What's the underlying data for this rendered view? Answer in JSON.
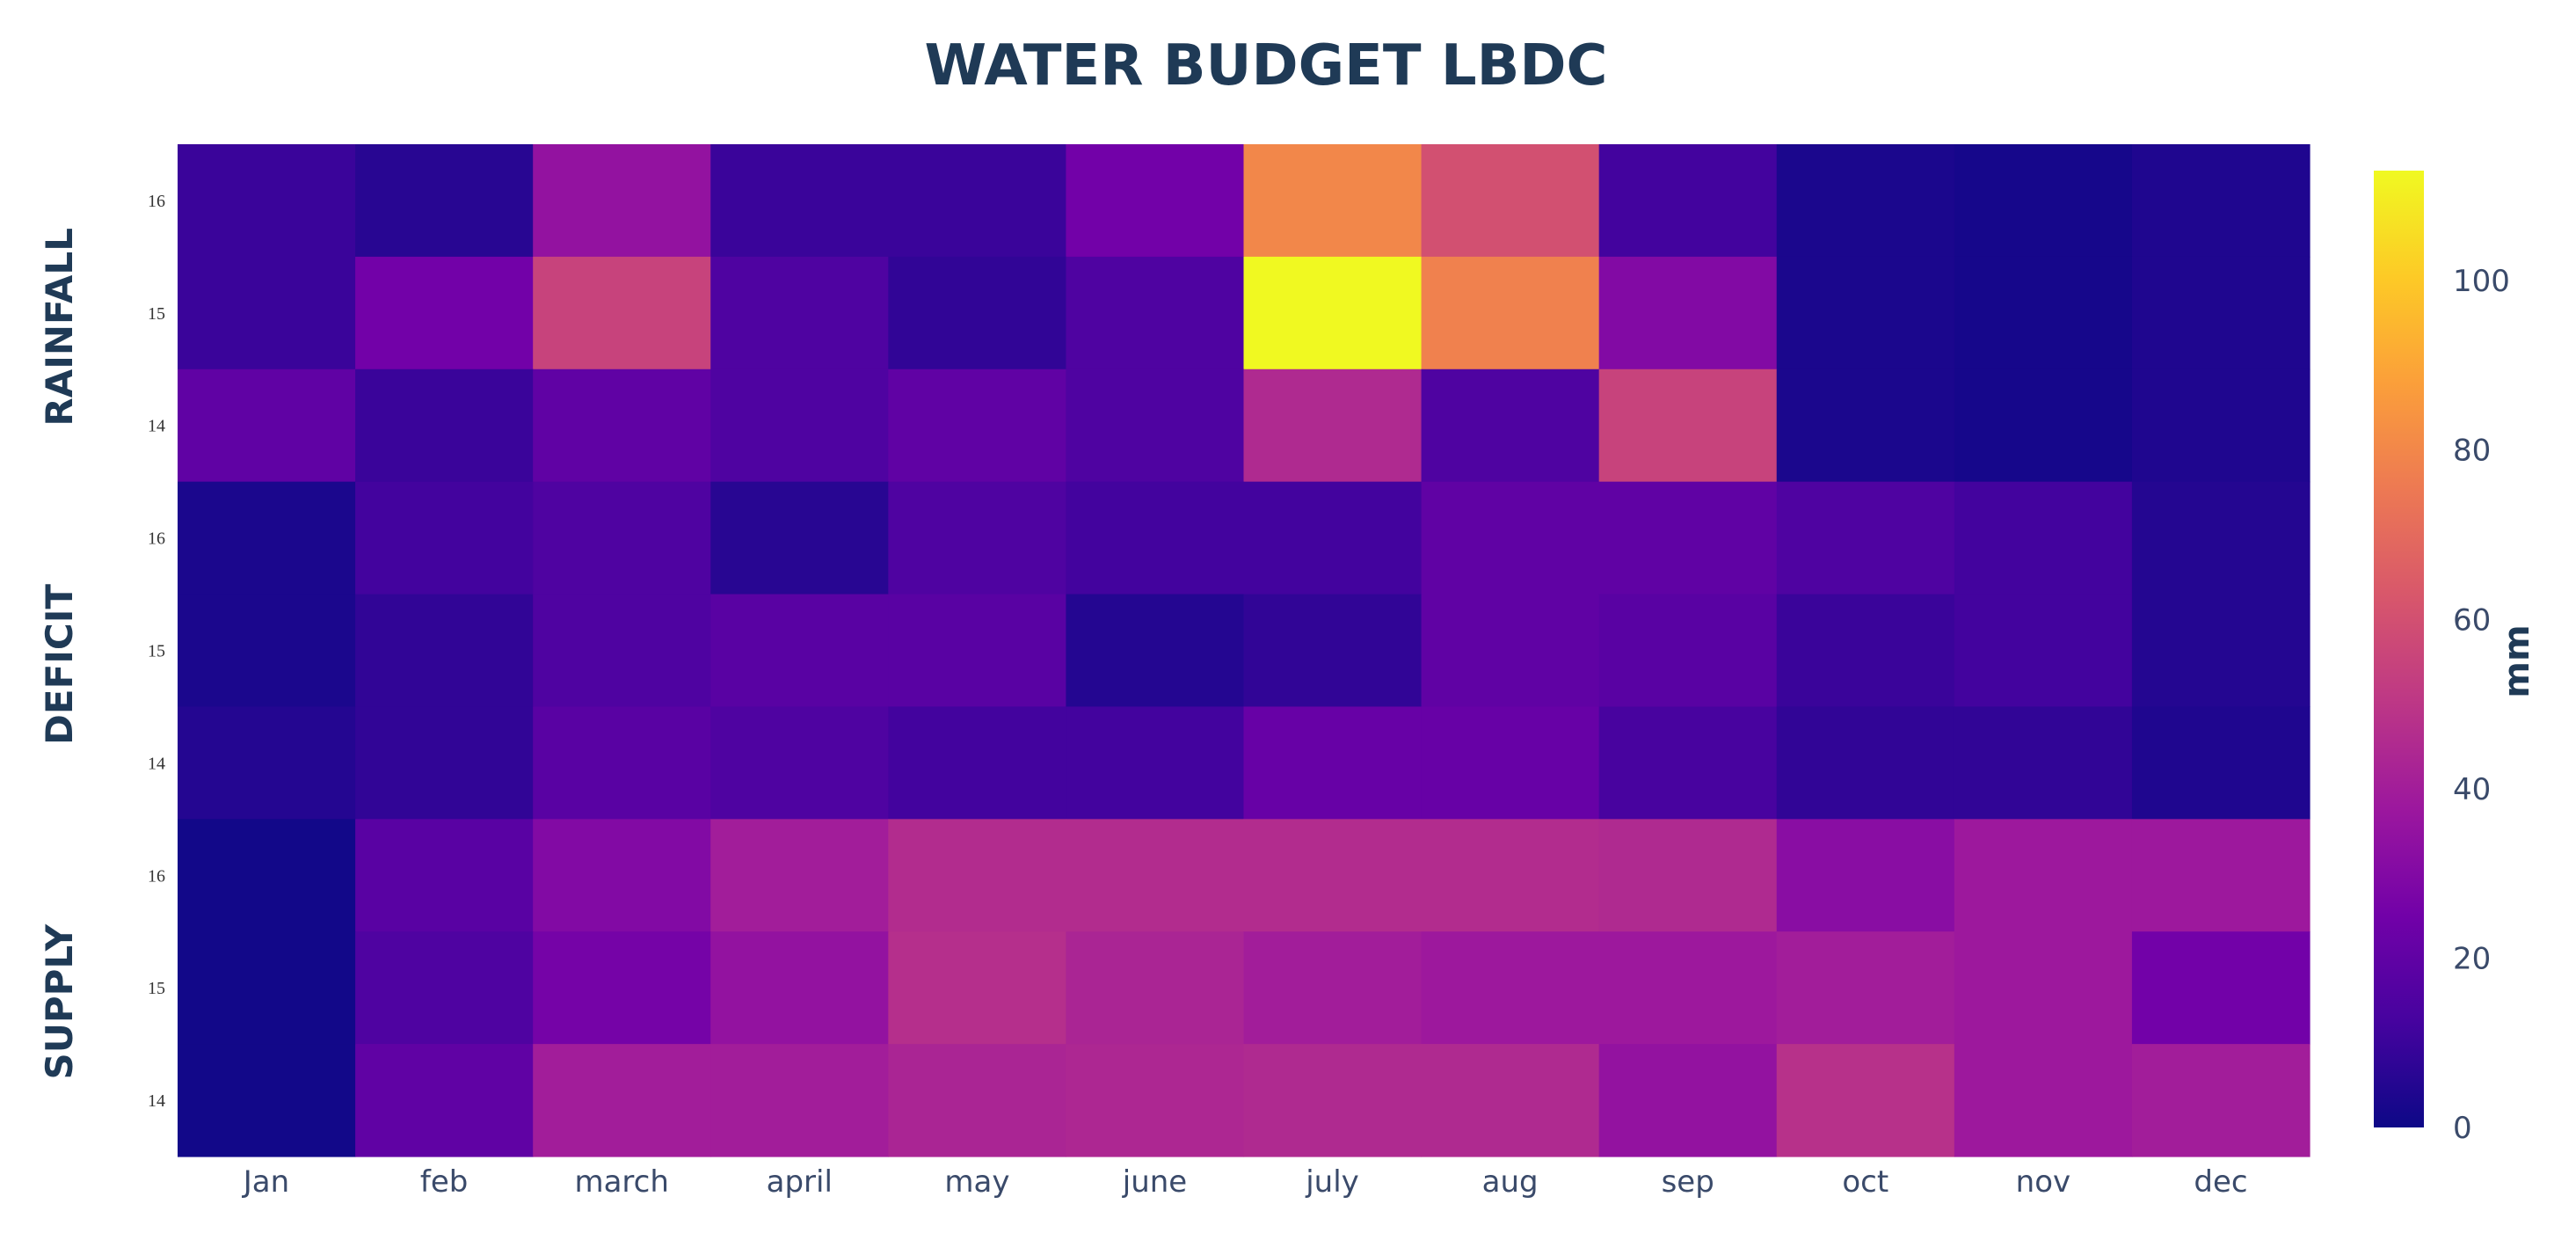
{
  "chart_data": {
    "type": "heatmap",
    "title": "WATER BUDGET LBDC",
    "colorbar_title": "mm",
    "colorbar_ticks": [
      0,
      20,
      40,
      60,
      80,
      100
    ],
    "zlim": [
      0,
      113
    ],
    "colorscale": [
      "#0d0887",
      "#46039f",
      "#7201a8",
      "#9c179e",
      "#bd3786",
      "#d8576b",
      "#ed7953",
      "#fb9f3a",
      "#fdca26",
      "#f0f921"
    ],
    "columns": [
      "Jan",
      "feb",
      "march",
      "april",
      "may",
      "june",
      "july",
      "aug",
      "sep",
      "oct",
      "nov",
      "dec"
    ],
    "rows": [
      {
        "group": "RAINFALL",
        "label": "16",
        "values": [
          10,
          6,
          35,
          10,
          10,
          25,
          80,
          60,
          12,
          3,
          2,
          4
        ]
      },
      {
        "group": "RAINFALL",
        "label": "15",
        "values": [
          10,
          25,
          55,
          15,
          8,
          15,
          113,
          78,
          30,
          3,
          2,
          4
        ]
      },
      {
        "group": "RAINFALL",
        "label": "14",
        "values": [
          20,
          10,
          20,
          15,
          20,
          15,
          45,
          15,
          55,
          3,
          2,
          4
        ]
      },
      {
        "group": "DEFICIT",
        "label": "16",
        "values": [
          3,
          12,
          15,
          6,
          15,
          12,
          12,
          20,
          20,
          15,
          12,
          5
        ]
      },
      {
        "group": "DEFICIT",
        "label": "15",
        "values": [
          3,
          8,
          15,
          18,
          18,
          5,
          8,
          20,
          18,
          10,
          12,
          5
        ]
      },
      {
        "group": "DEFICIT",
        "label": "14",
        "values": [
          5,
          8,
          18,
          15,
          12,
          12,
          22,
          22,
          13,
          8,
          8,
          4
        ]
      },
      {
        "group": "SUPPLY",
        "label": "16",
        "values": [
          1,
          18,
          30,
          40,
          46,
          46,
          46,
          46,
          45,
          32,
          38,
          38
        ]
      },
      {
        "group": "SUPPLY",
        "label": "15",
        "values": [
          1,
          15,
          26,
          35,
          47,
          43,
          40,
          38,
          38,
          40,
          38,
          25
        ]
      },
      {
        "group": "SUPPLY",
        "label": "14",
        "values": [
          1,
          20,
          40,
          40,
          43,
          44,
          45,
          45,
          35,
          48,
          38,
          40
        ]
      }
    ],
    "groups": [
      "RAINFALL",
      "DEFICIT",
      "SUPPLY"
    ]
  }
}
